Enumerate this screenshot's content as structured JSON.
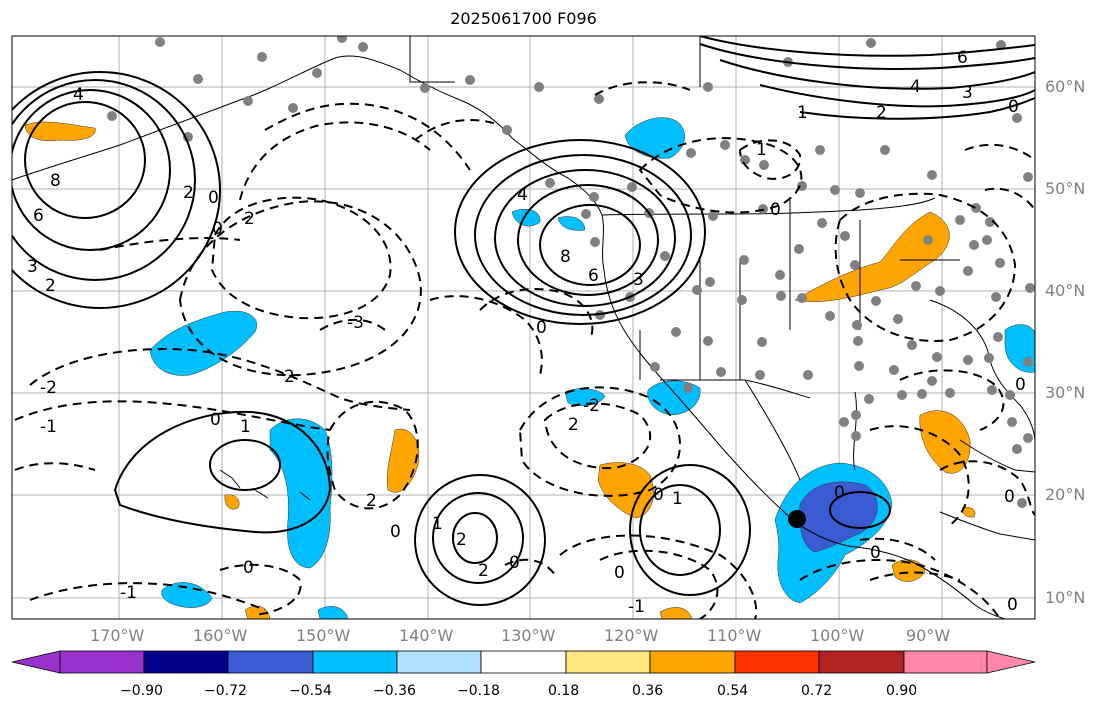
{
  "title": "2025061700 F096",
  "lat_labels": [
    "60°N",
    "50°N",
    "40°N",
    "30°N",
    "20°N",
    "10°N"
  ],
  "lon_labels": [
    "170°W",
    "160°W",
    "150°W",
    "140°W",
    "130°W",
    "120°W",
    "110°W",
    "100°W",
    "90°W"
  ],
  "colorbar": {
    "labels": [
      "−0.90",
      "−0.72",
      "−0.54",
      "−0.36",
      "−0.18",
      "0.18",
      "0.36",
      "0.54",
      "0.72",
      "0.90"
    ],
    "colors": [
      "#9932CC",
      "#00008B",
      "#3A5BD1",
      "#00BFFF",
      "#B0E2FF",
      "#FFFFFF",
      "#FFE680",
      "#FFA500",
      "#FF3300",
      "#B22222",
      "#FF88AA"
    ]
  },
  "contour_labels": [
    "4",
    "8",
    "6",
    "3",
    "2",
    "0",
    "2",
    "0",
    "2",
    "4",
    "8",
    "6",
    "3",
    "0",
    "-3",
    "2",
    "-2",
    "-1",
    "0",
    "1",
    "2",
    "0",
    "1",
    "2",
    "2",
    "0",
    "-2",
    "2",
    "0",
    "1",
    "0",
    "0",
    "1",
    "6",
    "4",
    "3",
    "2",
    "0",
    "1",
    "0",
    "0",
    "0",
    "0",
    "-1",
    "-1",
    "0",
    "0"
  ],
  "colors": {
    "frame": "#000000",
    "grid": "#b0b0b0",
    "station": "#808080",
    "marker": "#000000",
    "orange": "#FFA500",
    "light_blue": "#00BFFF",
    "medium_blue": "#3A5BD1",
    "pale_blue": "#B0E2FF"
  }
}
